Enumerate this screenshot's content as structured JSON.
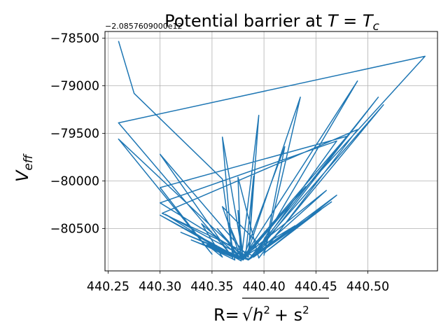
{
  "chart_data": {
    "type": "line",
    "title_text": "Potential barrier at ",
    "title_math": "T = T",
    "title_math_sub": "c",
    "xlabel_prefix": "R=",
    "xlabel_radicand": "h",
    "xlabel_radicand_rest": "+ s",
    "ylabel_main": "V",
    "ylabel_sub": "eff",
    "offset_text": "−2.0857609000e12",
    "xlim": [
      440.247,
      440.567
    ],
    "ylim": [
      -80945,
      -78430
    ],
    "x_ticks": [
      440.25,
      440.3,
      440.35,
      440.4,
      440.45,
      440.5
    ],
    "x_tick_labels": [
      "440.25",
      "440.30",
      "440.35",
      "440.40",
      "440.45",
      "440.50"
    ],
    "y_ticks": [
      -78500,
      -79000,
      -79500,
      -80000,
      -80500
    ],
    "y_tick_labels": [
      "−78500",
      "−79000",
      "−79500",
      "−80000",
      "−80500"
    ],
    "grid": true,
    "line_color": "#1f77b4",
    "series": [
      {
        "points": [
          [
            440.26,
            -78530
          ],
          [
            440.275,
            -79080
          ],
          [
            440.36,
            -79980
          ],
          [
            440.37,
            -80800
          ],
          [
            440.26,
            -79390
          ],
          [
            440.555,
            -78690
          ],
          [
            440.38,
            -80790
          ],
          [
            440.26,
            -79560
          ],
          [
            440.35,
            -80770
          ],
          [
            440.3,
            -80070
          ],
          [
            440.48,
            -79530
          ],
          [
            440.38,
            -80800
          ],
          [
            440.36,
            -79540
          ],
          [
            440.37,
            -80810
          ],
          [
            440.3,
            -79720
          ],
          [
            440.385,
            -80800
          ],
          [
            440.3,
            -80230
          ],
          [
            440.47,
            -79580
          ],
          [
            440.39,
            -80790
          ],
          [
            440.302,
            -80340
          ],
          [
            440.49,
            -79460
          ],
          [
            440.395,
            -80810
          ],
          [
            440.375,
            -79960
          ],
          [
            440.378,
            -80830
          ],
          [
            440.395,
            -79310
          ],
          [
            440.385,
            -80800
          ],
          [
            440.39,
            -79950
          ],
          [
            440.382,
            -80820
          ],
          [
            440.435,
            -79120
          ],
          [
            440.4,
            -80780
          ],
          [
            440.42,
            -79640
          ],
          [
            440.38,
            -80810
          ],
          [
            440.49,
            -78950
          ],
          [
            440.39,
            -80800
          ],
          [
            440.51,
            -79120
          ],
          [
            440.385,
            -80830
          ],
          [
            440.515,
            -79200
          ],
          [
            440.4,
            -80720
          ],
          [
            440.36,
            -80270
          ],
          [
            440.378,
            -80820
          ],
          [
            440.355,
            -80500
          ],
          [
            440.38,
            -80810
          ],
          [
            440.345,
            -80670
          ],
          [
            440.36,
            -80800
          ],
          [
            440.34,
            -80450
          ],
          [
            440.38,
            -80830
          ],
          [
            440.33,
            -80620
          ],
          [
            440.37,
            -80800
          ],
          [
            440.305,
            -80350
          ],
          [
            440.385,
            -80820
          ],
          [
            440.43,
            -80470
          ],
          [
            440.38,
            -80800
          ],
          [
            440.46,
            -80100
          ],
          [
            440.385,
            -80830
          ],
          [
            440.465,
            -80220
          ],
          [
            440.39,
            -80800
          ],
          [
            440.47,
            -80150
          ],
          [
            440.4,
            -80760
          ],
          [
            440.455,
            -80300
          ],
          [
            440.385,
            -80830
          ],
          [
            440.32,
            -80540
          ],
          [
            440.38,
            -80820
          ],
          [
            440.34,
            -80660
          ],
          [
            440.372,
            -80830
          ],
          [
            440.365,
            -80420
          ],
          [
            440.38,
            -80810
          ],
          [
            440.44,
            -80060
          ],
          [
            440.38,
            -80830
          ],
          [
            440.3,
            -80360
          ],
          [
            440.378,
            -80840
          ],
          [
            440.375,
            -80310
          ],
          [
            440.38,
            -80830
          ]
        ]
      }
    ]
  }
}
